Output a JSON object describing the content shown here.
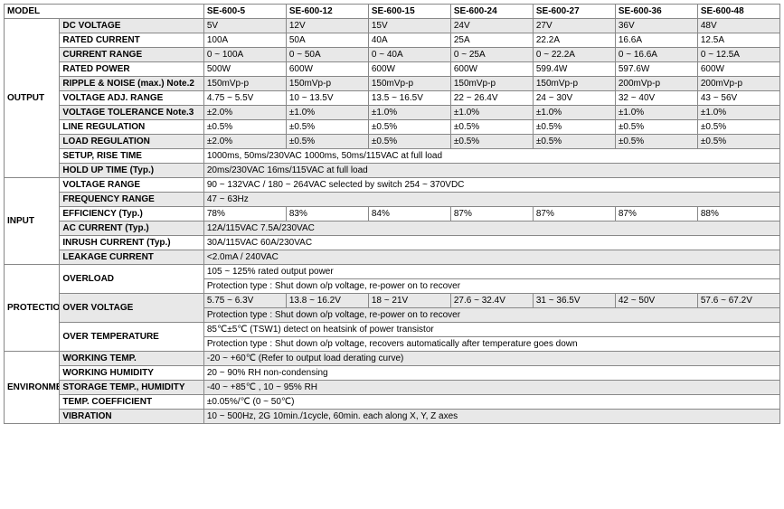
{
  "headers": {
    "model": "MODEL",
    "cols": [
      "SE-600-5",
      "SE-600-12",
      "SE-600-15",
      "SE-600-24",
      "SE-600-27",
      "SE-600-36",
      "SE-600-48"
    ]
  },
  "output": {
    "cat": "OUTPUT",
    "dc_voltage": {
      "label": "DC VOLTAGE",
      "vals": [
        "5V",
        "12V",
        "15V",
        "24V",
        "27V",
        "36V",
        "48V"
      ]
    },
    "rated_current": {
      "label": "RATED CURRENT",
      "vals": [
        "100A",
        "50A",
        "40A",
        "25A",
        "22.2A",
        "16.6A",
        "12.5A"
      ]
    },
    "current_range": {
      "label": "CURRENT RANGE",
      "vals": [
        "0 ~ 100A",
        "0 ~ 50A",
        "0 ~ 40A",
        "0 ~ 25A",
        "0 ~ 22.2A",
        "0 ~ 16.6A",
        "0 ~ 12.5A"
      ]
    },
    "rated_power": {
      "label": "RATED POWER",
      "vals": [
        "500W",
        "600W",
        "600W",
        "600W",
        "599.4W",
        "597.6W",
        "600W"
      ]
    },
    "ripple_noise": {
      "label": "RIPPLE & NOISE (max.)  Note.2",
      "vals": [
        "150mVp-p",
        "150mVp-p",
        "150mVp-p",
        "150mVp-p",
        "150mVp-p",
        "200mVp-p",
        "200mVp-p"
      ]
    },
    "voltage_adj": {
      "label": "VOLTAGE ADJ. RANGE",
      "vals": [
        "4.75 ~ 5.5V",
        "10 ~ 13.5V",
        "13.5 ~ 16.5V",
        "22 ~ 26.4V",
        "24 ~ 30V",
        "32 ~ 40V",
        "43 ~ 56V"
      ]
    },
    "voltage_tol": {
      "label": "VOLTAGE TOLERANCE  Note.3",
      "vals": [
        "±2.0%",
        "±1.0%",
        "±1.0%",
        "±1.0%",
        "±1.0%",
        "±1.0%",
        "±1.0%"
      ]
    },
    "line_reg": {
      "label": "LINE REGULATION",
      "vals": [
        "±0.5%",
        "±0.5%",
        "±0.5%",
        "±0.5%",
        "±0.5%",
        "±0.5%",
        "±0.5%"
      ]
    },
    "load_reg": {
      "label": "LOAD REGULATION",
      "vals": [
        "±2.0%",
        "±0.5%",
        "±0.5%",
        "±0.5%",
        "±0.5%",
        "±0.5%",
        "±0.5%"
      ]
    },
    "setup": {
      "label": "SETUP, RISE TIME",
      "val": "1000ms, 50ms/230VAC       1000ms, 50ms/115VAC at full load"
    },
    "holdup": {
      "label": "HOLD UP TIME (Typ.)",
      "val": "20ms/230VAC        16ms/115VAC at full load"
    }
  },
  "input": {
    "cat": "INPUT",
    "voltage_range": {
      "label": "VOLTAGE RANGE",
      "val": "90 ~ 132VAC / 180 ~ 264VAC selected by switch        254 ~ 370VDC"
    },
    "freq_range": {
      "label": "FREQUENCY RANGE",
      "val": "47 ~ 63Hz"
    },
    "efficiency": {
      "label": "EFFICIENCY (Typ.)",
      "vals": [
        "78%",
        "83%",
        "84%",
        "87%",
        "87%",
        "87%",
        "88%"
      ]
    },
    "ac_current": {
      "label": "AC CURRENT (Typ.)",
      "val": "12A/115VAC        7.5A/230VAC"
    },
    "inrush": {
      "label": "INRUSH CURRENT (Typ.)",
      "val": "30A/115VAC        60A/230VAC"
    },
    "leakage": {
      "label": "LEAKAGE CURRENT",
      "val": "<2.0mA / 240VAC"
    }
  },
  "protection": {
    "cat": "PROTECTION",
    "overload": {
      "label": "OVERLOAD",
      "val1": "105 ~ 125% rated output power",
      "val2": "Protection type : Shut down o/p voltage, re-power on to recover"
    },
    "overvoltage": {
      "label": "OVER VOLTAGE",
      "vals": [
        "5.75 ~ 6.3V",
        "13.8 ~ 16.2V",
        "18 ~ 21V",
        "27.6 ~ 32.4V",
        "31 ~ 36.5V",
        "42 ~ 50V",
        "57.6 ~ 67.2V"
      ],
      "val2": "Protection type : Shut down o/p voltage, re-power on to recover"
    },
    "overtemp": {
      "label": "OVER TEMPERATURE",
      "val1": "85℃±5℃ (TSW1) detect on heatsink of power transistor",
      "val2": "Protection type : Shut down o/p voltage, recovers automatically after temperature goes down"
    }
  },
  "environment": {
    "cat": "ENVIRONMENT",
    "working_temp": {
      "label": "WORKING TEMP.",
      "val": "-20 ~ +60℃ (Refer to output load derating curve)"
    },
    "working_humidity": {
      "label": "WORKING HUMIDITY",
      "val": "20 ~ 90% RH non-condensing"
    },
    "storage": {
      "label": "STORAGE TEMP., HUMIDITY",
      "val": "-40 ~ +85℃ , 10 ~ 95% RH"
    },
    "temp_coef": {
      "label": "TEMP. COEFFICIENT",
      "val": "±0.05%/℃ (0 ~ 50℃)"
    },
    "vibration": {
      "label": "VIBRATION",
      "val": "10 ~ 500Hz, 2G 10min./1cycle, 60min. each along X, Y, Z axes"
    }
  }
}
